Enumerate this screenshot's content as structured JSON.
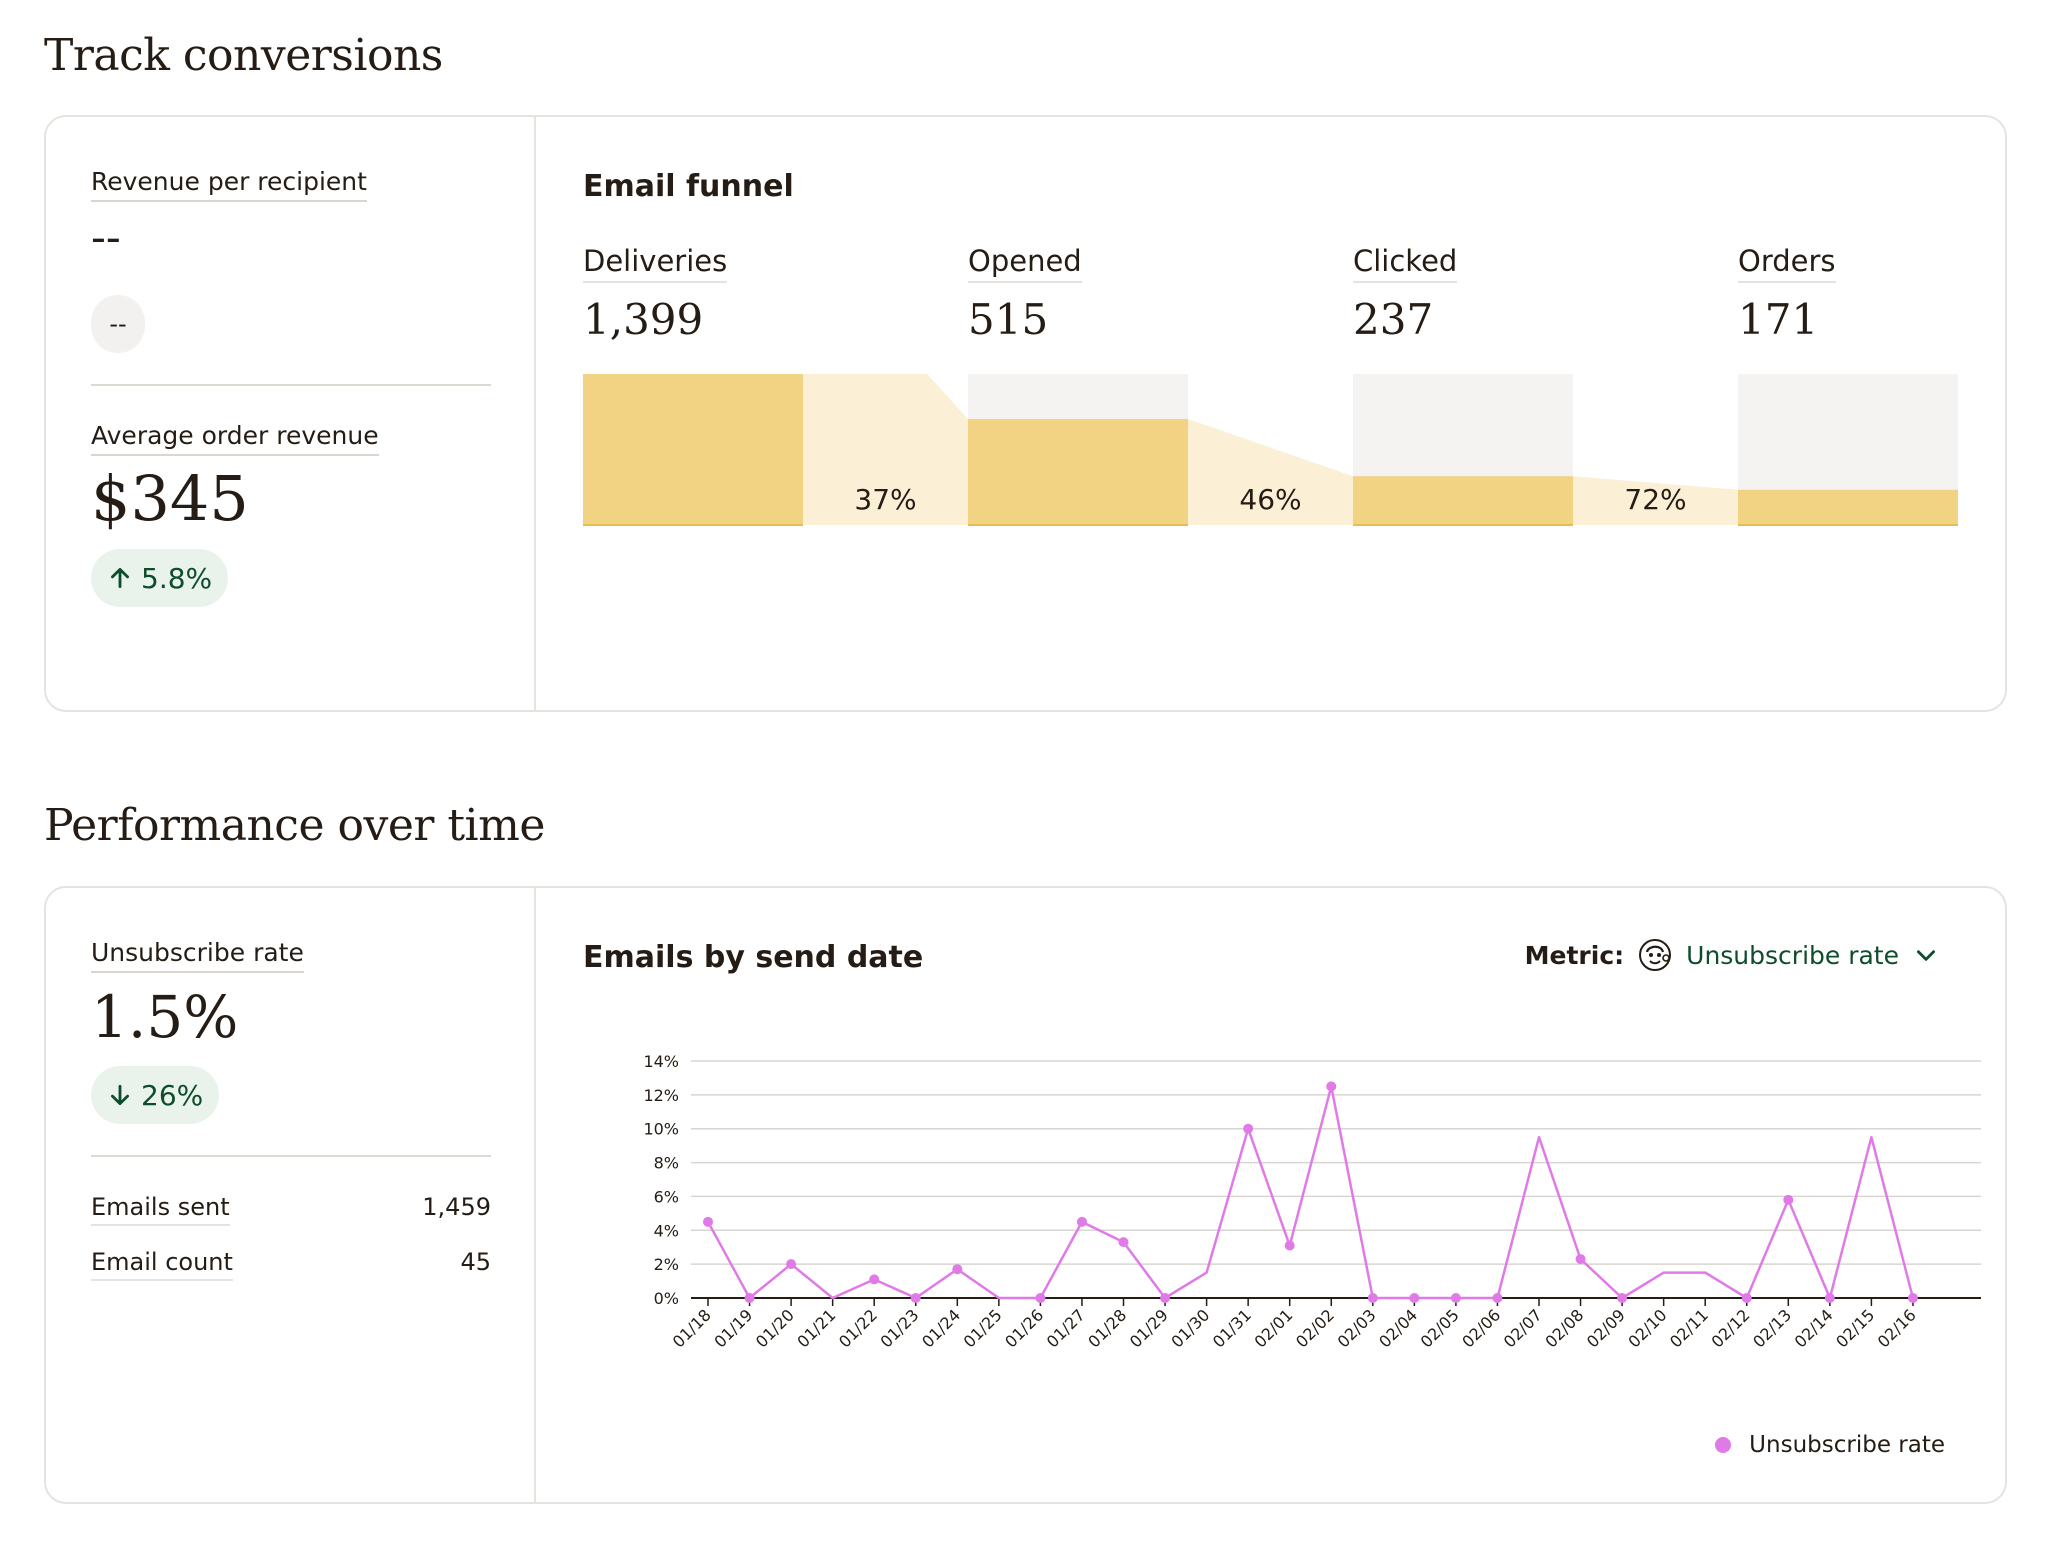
{
  "conversions": {
    "section_title": "Track conversions",
    "revenue_per_recipient": {
      "label": "Revenue per recipient",
      "value": "--",
      "change": "--"
    },
    "average_order_revenue": {
      "label": "Average order revenue",
      "value": "$345",
      "change": "5.8%",
      "direction": "up"
    },
    "funnel": {
      "title": "Email funnel",
      "stages": [
        {
          "label": "Deliveries",
          "value": "1,399",
          "count": 1399
        },
        {
          "label": "Opened",
          "value": "515",
          "count": 515
        },
        {
          "label": "Clicked",
          "value": "237",
          "count": 237
        },
        {
          "label": "Orders",
          "value": "171",
          "count": 171
        }
      ],
      "rates": [
        "37%",
        "46%",
        "72%"
      ],
      "colors": {
        "bar": "#f2d283",
        "bar_edge": "#e8bd4f",
        "track": "#f4f3f1",
        "connector": "#fbf0d6"
      }
    }
  },
  "performance": {
    "section_title": "Performance over time",
    "unsubscribe_rate": {
      "label": "Unsubscribe rate",
      "value": "1.5%",
      "change": "26%",
      "direction": "down"
    },
    "stats": [
      {
        "label": "Emails sent",
        "value": "1,459"
      },
      {
        "label": "Email count",
        "value": "45"
      }
    ],
    "chart_title": "Emails by send date",
    "metric": {
      "label": "Metric:",
      "value": "Unsubscribe rate",
      "icon": "mailchimp-freddie-icon"
    },
    "legend_label": "Unsubscribe rate"
  },
  "chart_data": {
    "type": "line",
    "title": "Emails by send date",
    "xlabel": "",
    "ylabel": "",
    "ylim": [
      0,
      14
    ],
    "y_ticks": [
      "0%",
      "2%",
      "4%",
      "6%",
      "8%",
      "10%",
      "12%",
      "14%"
    ],
    "grid": true,
    "legend": "bottom-right",
    "color": "#e07ae6",
    "x": [
      "01/18",
      "01/19",
      "01/20",
      "01/21",
      "01/22",
      "01/23",
      "01/24",
      "01/25",
      "01/26",
      "01/27",
      "01/28",
      "01/29",
      "01/30",
      "01/31",
      "02/01",
      "02/02",
      "02/03",
      "02/04",
      "02/05",
      "02/06",
      "02/07",
      "02/08",
      "02/09",
      "02/10",
      "02/11",
      "02/12",
      "02/13",
      "02/14",
      "02/15",
      "02/16"
    ],
    "series": [
      {
        "name": "Unsubscribe rate",
        "values": [
          4.5,
          0,
          2.0,
          0,
          1.1,
          0,
          1.7,
          0,
          0,
          4.5,
          3.3,
          0,
          1.5,
          10.0,
          3.1,
          12.5,
          0,
          0,
          0,
          0,
          9.5,
          2.3,
          0,
          1.5,
          1.5,
          0,
          5.8,
          0,
          9.5,
          0
        ],
        "markers": [
          true,
          true,
          true,
          false,
          true,
          true,
          true,
          false,
          true,
          true,
          true,
          true,
          false,
          true,
          true,
          true,
          true,
          true,
          true,
          true,
          false,
          true,
          true,
          false,
          false,
          true,
          true,
          true,
          false,
          true
        ]
      }
    ]
  }
}
